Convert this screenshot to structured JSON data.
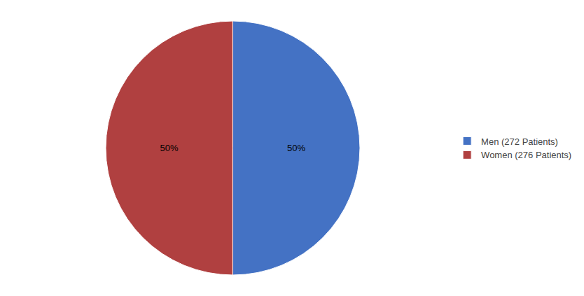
{
  "chart_data": {
    "type": "pie",
    "categories": [
      "Men (272 Patients)",
      "Women (276 Patients)"
    ],
    "values": [
      50,
      50
    ],
    "value_labels": [
      "50%",
      "50%"
    ],
    "colors": [
      "#4472C4",
      "#B04040"
    ],
    "data_labels": true,
    "legend": "right"
  }
}
